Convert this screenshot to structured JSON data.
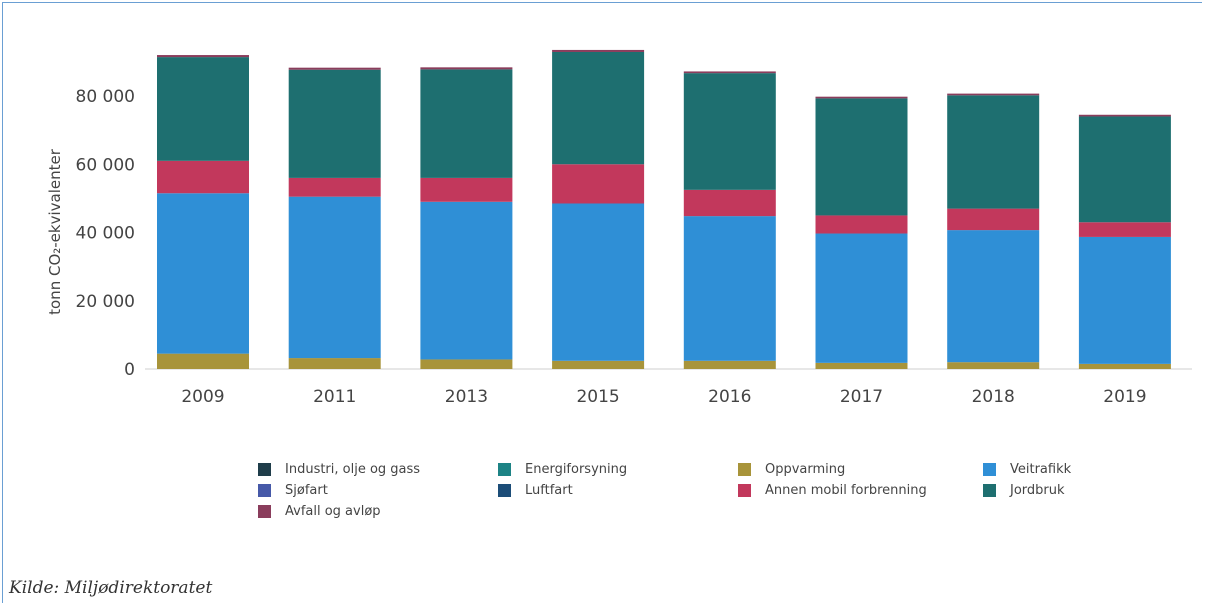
{
  "chart_data": {
    "type": "bar",
    "stacked": true,
    "categories": [
      "2009",
      "2011",
      "2013",
      "2015",
      "2016",
      "2017",
      "2018",
      "2019"
    ],
    "ylabel": "tonn CO₂-ekvivalenter",
    "ylim": [
      0,
      95000
    ],
    "yticks": [
      0,
      20000,
      40000,
      60000,
      80000
    ],
    "ytick_labels": [
      "0",
      "20 000",
      "40 000",
      "60 000",
      "80 000"
    ],
    "grid": false,
    "legend_position": "bottom",
    "series": [
      {
        "name": "Industri, olje og gass",
        "color": "#1f3d4a",
        "values": [
          0,
          0,
          0,
          0,
          0,
          0,
          0,
          0
        ]
      },
      {
        "name": "Energiforsyning",
        "color": "#1d8385",
        "values": [
          0,
          0,
          0,
          0,
          0,
          0,
          0,
          0
        ]
      },
      {
        "name": "Oppvarming",
        "color": "#a8943a",
        "values": [
          4500,
          3200,
          2800,
          2400,
          2400,
          1800,
          2000,
          1500
        ]
      },
      {
        "name": "Veitrafikk",
        "color": "#2f8fd6",
        "values": [
          47000,
          47300,
          46200,
          46100,
          42400,
          37900,
          38700,
          37200
        ]
      },
      {
        "name": "Sjøfart",
        "color": "#4659a8",
        "values": [
          0,
          0,
          0,
          0,
          0,
          0,
          0,
          0
        ]
      },
      {
        "name": "Luftfart",
        "color": "#1c4d78",
        "values": [
          0,
          0,
          0,
          0,
          0,
          0,
          0,
          0
        ]
      },
      {
        "name": "Annen mobil forbrenning",
        "color": "#c2385c",
        "values": [
          9500,
          5500,
          7000,
          11500,
          7700,
          5300,
          6300,
          4300
        ]
      },
      {
        "name": "Jordbruk",
        "color": "#1e6f70",
        "values": [
          30400,
          31700,
          31800,
          32900,
          34200,
          34300,
          33200,
          31000
        ]
      },
      {
        "name": "Avfall og avløp",
        "color": "#8a3d5c",
        "values": [
          600,
          600,
          600,
          600,
          500,
          500,
          500,
          500
        ]
      }
    ]
  },
  "source": "Kilde: Miljødirektoratet"
}
